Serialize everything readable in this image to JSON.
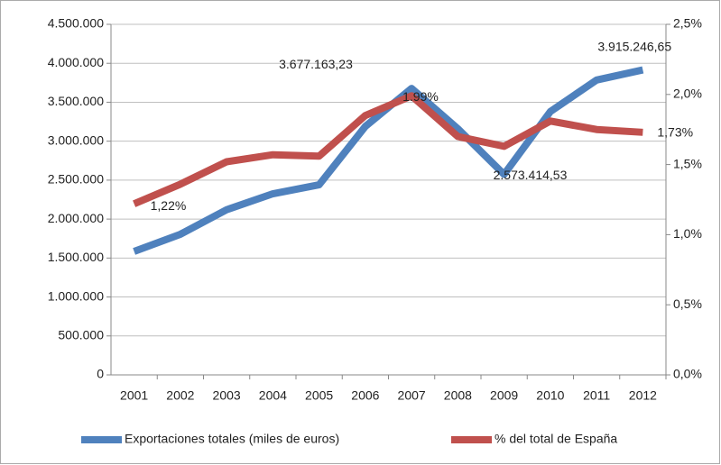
{
  "chart_data": {
    "type": "line",
    "categories": [
      "2001",
      "2002",
      "2003",
      "2004",
      "2005",
      "2006",
      "2007",
      "2008",
      "2009",
      "2010",
      "2011",
      "2012"
    ],
    "series": [
      {
        "name": "Exportaciones totales  (miles de euros)",
        "color": "#4f81bd",
        "values": [
          1585000,
          1805000,
          2120000,
          2325000,
          2440000,
          3190000,
          3677163.23,
          3160000,
          2573414.53,
          3380000,
          3785000,
          3915246.65
        ],
        "value_labels": [
          null,
          null,
          null,
          null,
          null,
          null,
          "3.677.163,23",
          null,
          "2.573.414,53",
          null,
          null,
          "3.915.246,65"
        ]
      },
      {
        "name": "% del total  de España",
        "color": "#c0504d",
        "axis": "y2",
        "values": [
          1.22,
          1.36,
          1.52,
          1.57,
          1.56,
          1.85,
          1.99,
          1.7,
          1.63,
          1.81,
          1.75,
          1.73
        ],
        "value_labels": [
          "1,22%",
          null,
          null,
          null,
          null,
          null,
          "1.99%",
          null,
          null,
          null,
          null,
          "1,73%"
        ]
      }
    ],
    "ylim": [
      0,
      4500000
    ],
    "yticks": [
      0,
      {
        "value": 500000,
        "label": "500.000"
      },
      {
        "value": 1000000,
        "label": "1.000.000"
      },
      {
        "value": 1500000,
        "label": "1.500.000"
      },
      {
        "value": 2000000,
        "label": "2.000.000"
      },
      {
        "value": 2500000,
        "label": "2.500.000"
      },
      {
        "value": 3000000,
        "label": "3.000.000"
      },
      {
        "value": 3500000,
        "label": "3.500.000"
      },
      {
        "value": 4000000,
        "label": "4.000.000"
      },
      {
        "value": 4500000,
        "label": "4.500.000"
      }
    ],
    "y2lim": [
      0,
      2.5
    ],
    "y2ticks": [
      {
        "value": 0,
        "label": "0,0%"
      },
      {
        "value": 0.5,
        "label": "0,5%"
      },
      {
        "value": 1,
        "label": "1,0%"
      },
      {
        "value": 1.5,
        "label": "1,5%"
      },
      {
        "value": 2,
        "label": "2,0%"
      },
      {
        "value": 2.5,
        "label": "2,5%"
      }
    ],
    "grid": true,
    "legend": "bottom"
  }
}
